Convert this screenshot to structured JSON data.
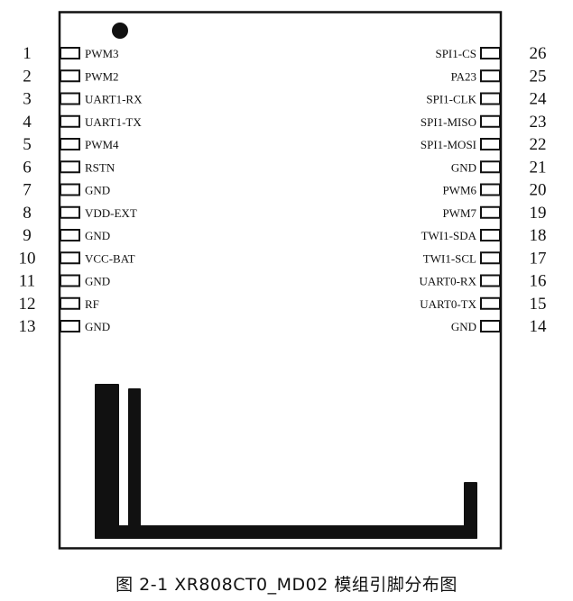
{
  "diagram": {
    "caption": "图 2-1 XR808CT0_MD02 模组引脚分布图",
    "left_pins": [
      {
        "number": "1",
        "name": "PWM3"
      },
      {
        "number": "2",
        "name": "PWM2"
      },
      {
        "number": "3",
        "name": "UART1-RX"
      },
      {
        "number": "4",
        "name": "UART1-TX"
      },
      {
        "number": "5",
        "name": "PWM4"
      },
      {
        "number": "6",
        "name": "RSTN"
      },
      {
        "number": "7",
        "name": "GND"
      },
      {
        "number": "8",
        "name": "VDD-EXT"
      },
      {
        "number": "9",
        "name": "GND"
      },
      {
        "number": "10",
        "name": "VCC-BAT"
      },
      {
        "number": "11",
        "name": "GND"
      },
      {
        "number": "12",
        "name": "RF"
      },
      {
        "number": "13",
        "name": "GND"
      }
    ],
    "right_pins": [
      {
        "number": "26",
        "name": "SPI1-CS"
      },
      {
        "number": "25",
        "name": "PA23"
      },
      {
        "number": "24",
        "name": "SPI1-CLK"
      },
      {
        "number": "23",
        "name": "SPI1-MISO"
      },
      {
        "number": "22",
        "name": "SPI1-MOSI"
      },
      {
        "number": "21",
        "name": "GND"
      },
      {
        "number": "20",
        "name": "PWM6"
      },
      {
        "number": "19",
        "name": "PWM7"
      },
      {
        "number": "18",
        "name": "TWI1-SDA"
      },
      {
        "number": "17",
        "name": "TWI1-SCL"
      },
      {
        "number": "16",
        "name": "UART0-RX"
      },
      {
        "number": "15",
        "name": "UART0-TX"
      },
      {
        "number": "14",
        "name": "GND"
      }
    ],
    "colors": {
      "ink": "#111111",
      "background": "#ffffff"
    }
  }
}
